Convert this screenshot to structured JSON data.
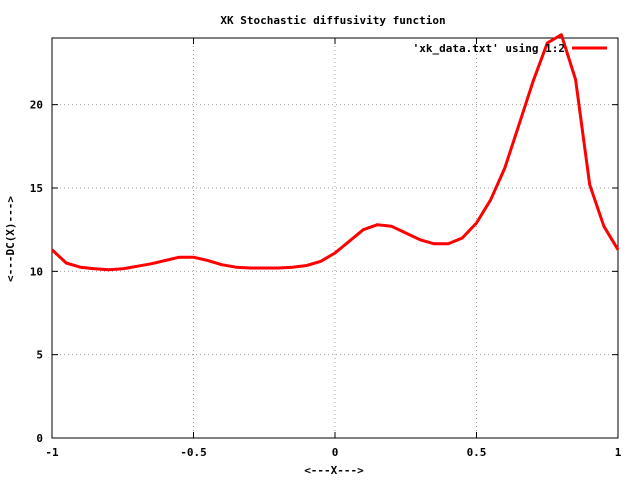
{
  "chart_data": {
    "type": "line",
    "title": "XK Stochastic diffusivity function",
    "xlabel": "<---X--->",
    "ylabel": "<---DC(X)--->",
    "xlim": [
      -1,
      1
    ],
    "ylim": [
      0,
      24
    ],
    "xticks": [
      "-1",
      "-0.5",
      "0",
      "0.5",
      "1"
    ],
    "xtick_values": [
      -1,
      -0.5,
      0,
      0.5,
      1
    ],
    "yticks": [
      "0",
      "5",
      "10",
      "15",
      "20"
    ],
    "ytick_values": [
      0,
      5,
      10,
      15,
      20
    ],
    "grid": true,
    "legend_position": "top-right",
    "series": [
      {
        "name": "'xk_data.txt' using 1:2",
        "color": "#ff0000",
        "x": [
          -1.0,
          -0.95,
          -0.9,
          -0.85,
          -0.8,
          -0.75,
          -0.7,
          -0.65,
          -0.6,
          -0.55,
          -0.5,
          -0.45,
          -0.4,
          -0.35,
          -0.3,
          -0.25,
          -0.2,
          -0.15,
          -0.1,
          -0.05,
          0.0,
          0.05,
          0.1,
          0.15,
          0.2,
          0.25,
          0.3,
          0.35,
          0.4,
          0.45,
          0.5,
          0.55,
          0.6,
          0.65,
          0.7,
          0.75,
          0.8,
          0.85,
          0.9,
          0.95,
          1.0
        ],
        "y": [
          11.3,
          10.5,
          10.25,
          10.15,
          10.1,
          10.15,
          10.3,
          10.45,
          10.65,
          10.85,
          10.85,
          10.65,
          10.4,
          10.25,
          10.2,
          10.2,
          10.2,
          10.25,
          10.35,
          10.6,
          11.1,
          11.8,
          12.5,
          12.8,
          12.7,
          12.3,
          11.9,
          11.65,
          11.65,
          12.0,
          12.9,
          14.3,
          16.2,
          18.8,
          21.4,
          23.7,
          24.2,
          21.5,
          15.2,
          12.7,
          11.3
        ]
      }
    ]
  }
}
